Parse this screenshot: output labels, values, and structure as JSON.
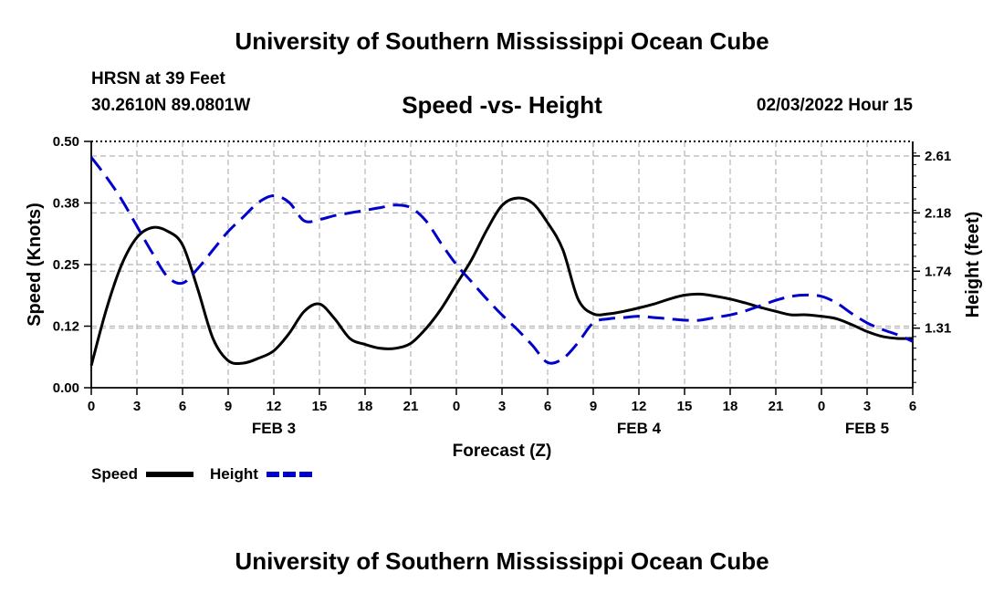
{
  "header": {
    "title": "University of Southern Mississippi Ocean Cube",
    "station": "HRSN at 39 Feet",
    "coords": "30.2610N  89.0801W",
    "subtitle": "Speed -vs- Height",
    "datetime": "02/03/2022 Hour 15"
  },
  "footer": {
    "title": "University of Southern Mississippi Ocean Cube"
  },
  "colors": {
    "speed": "#000000",
    "height": "#0000cc",
    "grid": "#b4b4b4"
  },
  "chart_data": {
    "type": "line",
    "xlabel": "Forecast (Z)",
    "ylabel": "Speed (Knots)",
    "y2label": "Height (feet)",
    "x_range": [
      0,
      54
    ],
    "x_tick_positions": [
      0,
      3,
      6,
      9,
      12,
      15,
      18,
      21,
      24,
      27,
      30,
      33,
      36,
      39,
      42,
      45,
      48,
      51,
      54
    ],
    "x_tick_labels": [
      "0",
      "3",
      "6",
      "9",
      "12",
      "15",
      "18",
      "21",
      "0",
      "3",
      "6",
      "9",
      "12",
      "15",
      "18",
      "21",
      "0",
      "3",
      "6"
    ],
    "day_labels": [
      {
        "label": "FEB 3",
        "x": 12
      },
      {
        "label": "FEB 4",
        "x": 36
      },
      {
        "label": "FEB 5",
        "x": 51
      }
    ],
    "ylim": [
      0,
      0.5
    ],
    "y_ticks": [
      0.0,
      0.125,
      0.25,
      0.375,
      0.5
    ],
    "y_tick_labels": [
      "0.00",
      "0.12",
      "0.25",
      "0.38",
      "0.50"
    ],
    "y2lim": [
      0.86,
      2.72
    ],
    "y2_ticks": [
      1.31,
      1.74,
      2.18,
      2.61
    ],
    "y2_tick_labels": [
      "1.31",
      "1.74",
      "2.18",
      "2.61"
    ],
    "series": [
      {
        "name": "Speed",
        "axis": "left",
        "style": "solid",
        "x": [
          0,
          1,
          2,
          3,
          4,
          5,
          6,
          7,
          8,
          9,
          10,
          11,
          12,
          13,
          14,
          15,
          16,
          17,
          18,
          19,
          20,
          21,
          22,
          23,
          24,
          25,
          26,
          27,
          28,
          29,
          30,
          31,
          32,
          33,
          34,
          35,
          36,
          37,
          38,
          39,
          40,
          41,
          42,
          43,
          44,
          45,
          46,
          47,
          48,
          49,
          50,
          51,
          52,
          53,
          54
        ],
        "values": [
          0.045,
          0.16,
          0.25,
          0.305,
          0.325,
          0.318,
          0.29,
          0.2,
          0.1,
          0.055,
          0.05,
          0.06,
          0.075,
          0.11,
          0.155,
          0.17,
          0.14,
          0.1,
          0.088,
          0.08,
          0.08,
          0.09,
          0.12,
          0.16,
          0.21,
          0.26,
          0.32,
          0.37,
          0.385,
          0.375,
          0.335,
          0.28,
          0.18,
          0.15,
          0.15,
          0.155,
          0.162,
          0.17,
          0.18,
          0.188,
          0.19,
          0.186,
          0.18,
          0.172,
          0.163,
          0.155,
          0.148,
          0.148,
          0.145,
          0.14,
          0.128,
          0.114,
          0.104,
          0.1,
          0.1
        ]
      },
      {
        "name": "Height",
        "axis": "right",
        "style": "dashed",
        "x": [
          0,
          1,
          2,
          3,
          4,
          5,
          6,
          7,
          8,
          9,
          10,
          11,
          12,
          13,
          14,
          15,
          16,
          17,
          18,
          19,
          20,
          21,
          22,
          23,
          24,
          25,
          26,
          27,
          28,
          29,
          30,
          31,
          32,
          33,
          34,
          35,
          36,
          37,
          38,
          39,
          40,
          41,
          42,
          43,
          44,
          45,
          46,
          47,
          48,
          49,
          50,
          51,
          52,
          53,
          54
        ],
        "values": [
          2.6,
          2.45,
          2.28,
          2.08,
          1.88,
          1.7,
          1.65,
          1.76,
          1.9,
          2.04,
          2.15,
          2.26,
          2.31,
          2.26,
          2.12,
          2.13,
          2.16,
          2.18,
          2.2,
          2.22,
          2.24,
          2.22,
          2.12,
          1.95,
          1.79,
          1.66,
          1.53,
          1.41,
          1.3,
          1.18,
          1.05,
          1.08,
          1.2,
          1.35,
          1.38,
          1.39,
          1.4,
          1.39,
          1.38,
          1.37,
          1.37,
          1.39,
          1.41,
          1.44,
          1.48,
          1.52,
          1.55,
          1.56,
          1.55,
          1.5,
          1.42,
          1.35,
          1.3,
          1.26,
          1.21
        ]
      }
    ],
    "legend": [
      {
        "label": "Speed",
        "style": "solid"
      },
      {
        "label": "Height",
        "style": "dashed"
      }
    ],
    "legend_position": "bottom-left"
  }
}
